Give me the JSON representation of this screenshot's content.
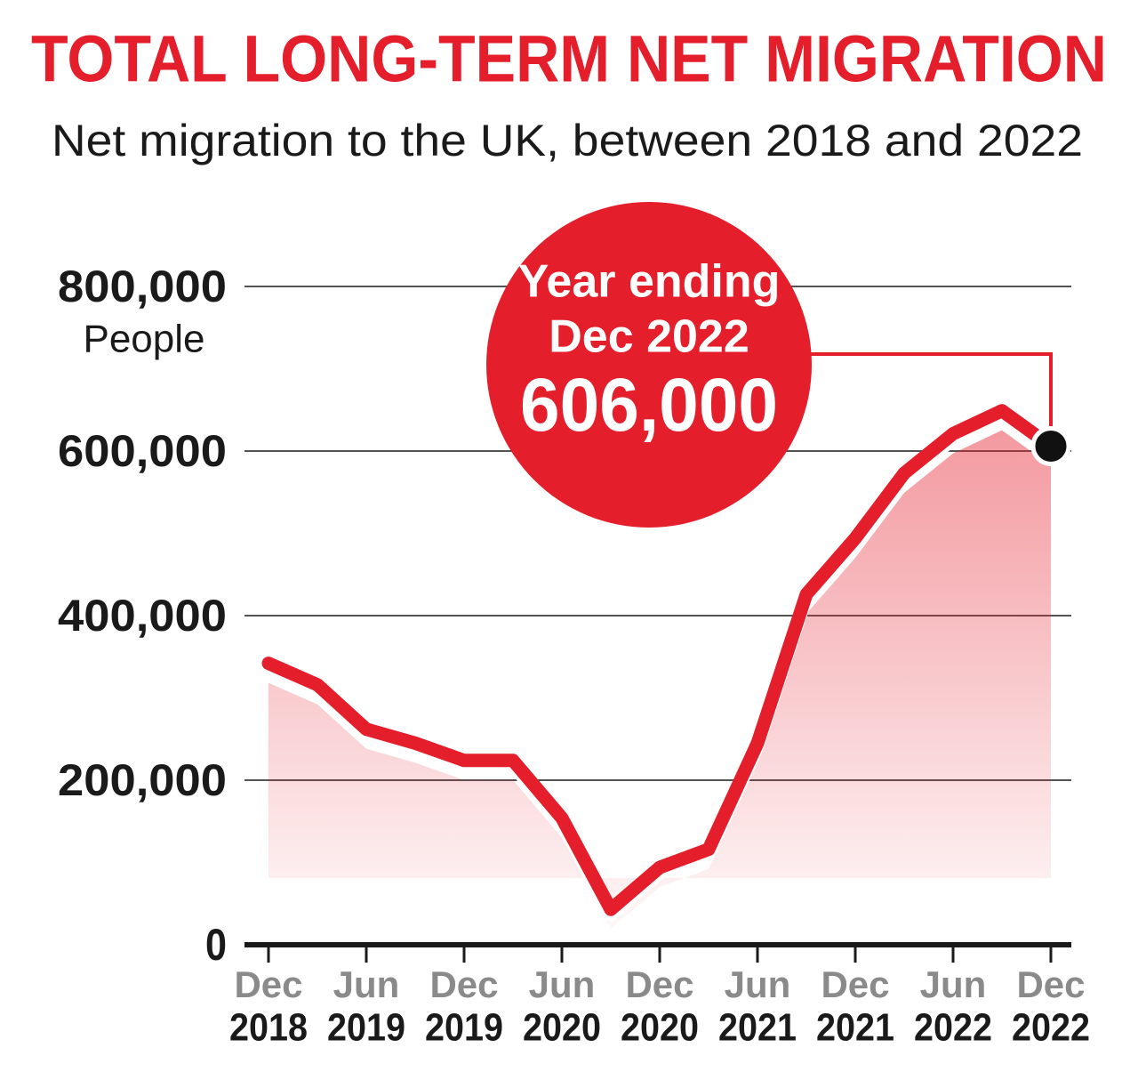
{
  "chart_data": {
    "type": "line",
    "title": "TOTAL LONG-TERM NET MIGRATION",
    "subtitle": "Net migration to the UK, between 2018 and 2022",
    "y_label": "People",
    "categories": [
      "Dec",
      null,
      "Jun",
      null,
      "Dec",
      null,
      "Jun",
      null,
      "Dec",
      null,
      "Jun",
      null,
      "Dec",
      null,
      "Jun",
      null,
      "Dec"
    ],
    "category_years": [
      "2018",
      null,
      "2019",
      null,
      "2019",
      null,
      "2020",
      null,
      "2020",
      null,
      "2021",
      null,
      "2021",
      null,
      "2022",
      null,
      "2022"
    ],
    "values": [
      342000,
      316000,
      262000,
      245000,
      224000,
      224000,
      154000,
      43000,
      94000,
      116000,
      245000,
      426000,
      494000,
      573000,
      621000,
      649000,
      606000
    ],
    "value_labels": [
      null,
      null,
      null,
      null,
      null,
      null,
      null,
      null,
      null,
      null,
      null,
      null,
      null,
      null,
      null,
      null,
      "606,000"
    ],
    "annotation": [
      "Year ending",
      "Dec 2022"
    ],
    "color": "#e41e2b",
    "ylim": [
      0,
      800000
    ],
    "yticks": [
      0,
      {
        "value": 200000,
        "label": "200,000"
      },
      {
        "value": 400000,
        "label": "400,000"
      },
      {
        "value": 600000,
        "label": "600,000"
      },
      {
        "value": 800000,
        "label": "800,000"
      }
    ],
    "grid": true
  }
}
